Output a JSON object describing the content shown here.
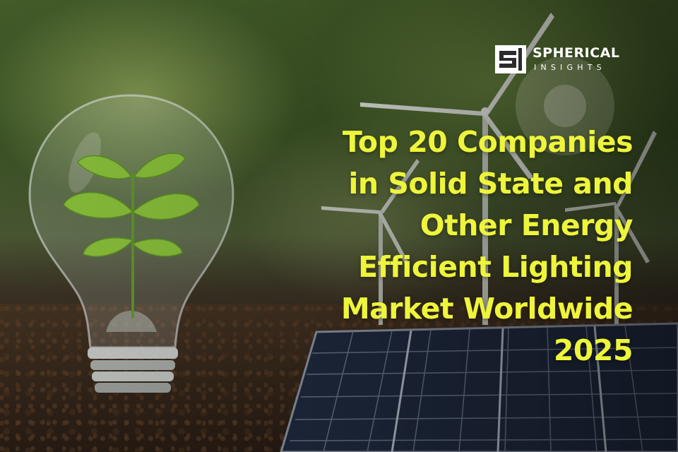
{
  "brand": {
    "name": "SPHERICAL",
    "tagline": "INSIGHTS"
  },
  "headline": {
    "lines": [
      "Top 20 Companies",
      "in Solid State and",
      "Other Energy",
      "Efficient Lighting",
      "Market Worldwide",
      "2025"
    ]
  },
  "colors": {
    "headline": "#eef53a",
    "brand_text": "#ffffff"
  },
  "scene": {
    "subjects": [
      "light-bulb-with-seedling",
      "wind-turbines",
      "solar-panel",
      "soil"
    ]
  }
}
